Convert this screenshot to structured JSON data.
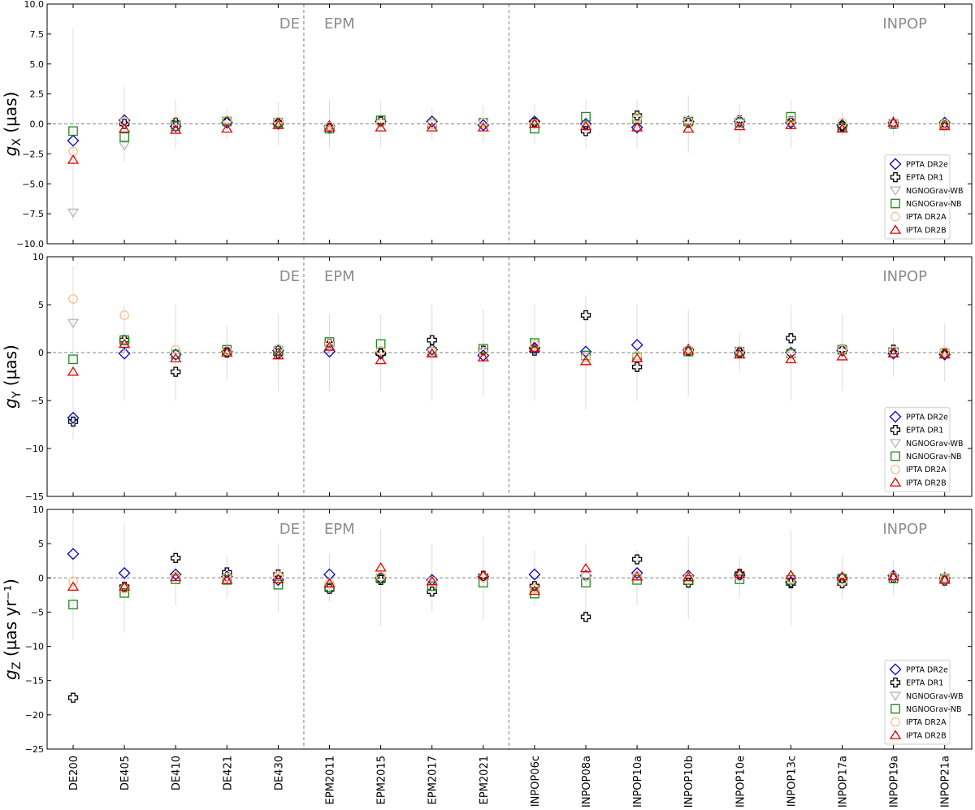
{
  "chart_data": {
    "type": "scatter",
    "categories": [
      "DE200",
      "DE405",
      "DE410",
      "DE421",
      "DE430",
      "EPM2011",
      "EPM2015",
      "EPM2017",
      "EPM2021",
      "INPOP06c",
      "INPOP08a",
      "INPOP10a",
      "INPOP10b",
      "INPOP10e",
      "INPOP13c",
      "INPOP17a",
      "INPOP19a",
      "INPOP21a"
    ],
    "regions": [
      {
        "label": "DE"
      },
      {
        "label": "EPM"
      },
      {
        "label": "INPOP"
      }
    ],
    "region_boundaries_after_index": [
      4,
      8
    ],
    "series": [
      {
        "name": "PPTA DR2e",
        "marker": "diamond",
        "color": "#0000cc"
      },
      {
        "name": "EPTA DR1",
        "marker": "plus",
        "color": "#000000"
      },
      {
        "name": "NGNOGrav-WB",
        "marker": "triangle-down",
        "color": "#b5b5b5"
      },
      {
        "name": "NGNOGrav-NB",
        "marker": "square",
        "color": "#1a8c1a"
      },
      {
        "name": "IPTA DR2A",
        "marker": "circle",
        "color": "#ffbe8c"
      },
      {
        "name": "IPTA DR2B",
        "marker": "triangle-up",
        "color": "#e60000"
      }
    ],
    "legend_position": "bottom-right",
    "grid": false,
    "panels": [
      {
        "ylabel_main": "g",
        "ylabel_sub": "X",
        "ylabel_unit": " (µas)",
        "ylim": [
          -10,
          10
        ],
        "yticks": [
          -10,
          -7.5,
          -5,
          -2.5,
          0,
          2.5,
          5,
          7.5,
          10
        ],
        "yticklabels": [
          "−10.0",
          "−7.5",
          "−5.0",
          "−2.5",
          "0.0",
          "2.5",
          "5.0",
          "7.5",
          "10.0"
        ],
        "values": {
          "PPTA DR2e": [
            -1.4,
            0.3,
            -0.2,
            0.1,
            0.0,
            -0.2,
            0.2,
            0.2,
            -0.1,
            0.2,
            0.0,
            -0.3,
            0.2,
            0.2,
            0.1,
            -0.1,
            0.1,
            0.1
          ],
          "EPTA DR1": [
            null,
            0.0,
            0.1,
            0.2,
            0.1,
            -0.3,
            0.2,
            null,
            null,
            0.1,
            -0.6,
            0.7,
            0.1,
            0.3,
            0.2,
            -0.2,
            0.0,
            -0.1
          ],
          "NGNOGrav-WB": [
            -7.4,
            -1.8,
            null,
            null,
            null,
            -0.5,
            null,
            null,
            null,
            null,
            null,
            null,
            null,
            null,
            null,
            null,
            null,
            null
          ],
          "NGNOGrav-NB": [
            -0.6,
            -1.1,
            -0.2,
            0.2,
            0.1,
            -0.4,
            0.3,
            0.0,
            0.1,
            -0.4,
            0.6,
            0.4,
            0.2,
            0.1,
            0.6,
            -0.3,
            0.0,
            -0.1
          ],
          "IPTA DR2A": [
            -2.3,
            0.2,
            0.2,
            0.3,
            0.2,
            -0.2,
            0.1,
            0.0,
            0.1,
            0.0,
            -0.2,
            0.5,
            0.2,
            0.3,
            0.2,
            0.1,
            0.1,
            0.0
          ],
          "IPTA DR2B": [
            -3.0,
            -0.4,
            -0.5,
            -0.4,
            -0.1,
            -0.3,
            -0.3,
            -0.3,
            -0.3,
            0.0,
            -0.2,
            -0.3,
            -0.4,
            -0.2,
            -0.1,
            -0.4,
            0.1,
            -0.2
          ]
        },
        "errorbar_halfwidths": [
          8.0,
          3.2,
          2.0,
          1.3,
          1.8,
          2.0,
          2.0,
          1.3,
          1.5,
          1.6,
          2.0,
          2.0,
          2.4,
          1.6,
          2.0,
          1.0,
          1.0,
          1.0
        ]
      },
      {
        "ylabel_main": "g",
        "ylabel_sub": "Y",
        "ylabel_unit": " (µas)",
        "ylim": [
          -15,
          10
        ],
        "yticks": [
          -15,
          -10,
          -5,
          0,
          5,
          10
        ],
        "yticklabels": [
          "−15",
          "−10",
          "−5",
          "0",
          "5",
          "10"
        ],
        "values": {
          "PPTA DR2e": [
            -6.8,
            -0.1,
            -0.2,
            0.1,
            0.2,
            0.1,
            -0.1,
            0.3,
            -0.3,
            0.5,
            0.1,
            0.8,
            0.3,
            0.0,
            0.0,
            0.2,
            -0.1,
            -0.2
          ],
          "EPTA DR1": [
            -7.2,
            1.3,
            -2.0,
            0.0,
            -0.1,
            0.9,
            -0.1,
            1.3,
            0.2,
            0.2,
            3.9,
            -1.5,
            0.2,
            0.0,
            1.5,
            0.3,
            0.3,
            -0.1
          ],
          "NGNOGrav-WB": [
            3.1,
            0.6,
            null,
            null,
            null,
            0.5,
            null,
            null,
            null,
            null,
            null,
            null,
            null,
            null,
            null,
            null,
            null,
            null
          ],
          "NGNOGrav-NB": [
            -0.7,
            1.3,
            -0.2,
            0.3,
            0.2,
            1.1,
            0.9,
            0.1,
            0.4,
            1.0,
            -0.3,
            -0.5,
            0.1,
            0.1,
            -0.1,
            0.3,
            0.0,
            -0.1
          ],
          "IPTA DR2A": [
            5.6,
            3.9,
            0.3,
            0.2,
            0.4,
            0.9,
            0.2,
            0.1,
            0.1,
            0.8,
            -0.5,
            -0.3,
            0.3,
            0.2,
            -0.2,
            0.3,
            0.2,
            0.1
          ],
          "IPTA DR2B": [
            -2.0,
            0.9,
            -0.6,
            0.0,
            -0.3,
            0.6,
            -0.8,
            -0.1,
            -0.5,
            0.5,
            -0.9,
            -0.6,
            0.2,
            -0.2,
            -0.7,
            -0.4,
            -0.1,
            -0.2
          ]
        },
        "errorbar_halfwidths": [
          9.0,
          5.0,
          5.0,
          2.8,
          4.0,
          4.0,
          4.0,
          5.0,
          4.5,
          5.0,
          6.0,
          5.0,
          4.5,
          2.0,
          5.0,
          4.0,
          2.5,
          3.0
        ]
      },
      {
        "ylabel_main": "g",
        "ylabel_sub": "Z",
        "ylabel_unit": " (µas yr⁻¹)",
        "ylim": [
          -25,
          10
        ],
        "yticks": [
          -25,
          -20,
          -15,
          -10,
          -5,
          0,
          5,
          10
        ],
        "yticklabels": [
          "−25",
          "−20",
          "−15",
          "−10",
          "−5",
          "0",
          "5",
          "10"
        ],
        "values": {
          "PPTA DR2e": [
            3.5,
            0.7,
            0.5,
            0.2,
            -0.3,
            0.5,
            0.0,
            -0.3,
            0.2,
            0.5,
            0.3,
            0.7,
            0.3,
            0.4,
            -0.6,
            0.0,
            0.3,
            0.0
          ],
          "EPTA DR1": [
            -17.5,
            -1.3,
            2.9,
            0.8,
            0.5,
            -1.6,
            -0.3,
            -2.0,
            0.3,
            -1.2,
            -5.7,
            2.7,
            -0.7,
            0.6,
            -0.8,
            -0.8,
            0.0,
            -0.4
          ],
          "NGNOGrav-WB": [
            null,
            null,
            null,
            null,
            null,
            null,
            null,
            null,
            null,
            null,
            null,
            null,
            null,
            null,
            null,
            null,
            null,
            null
          ],
          "NGNOGrav-NB": [
            -3.9,
            -2.2,
            -0.2,
            -0.3,
            -1.0,
            -1.4,
            -0.1,
            -1.2,
            -0.7,
            -2.3,
            -0.7,
            -0.3,
            -0.3,
            -0.2,
            -0.3,
            -0.1,
            -0.1,
            -0.1
          ],
          "IPTA DR2A": [
            -0.5,
            -1.6,
            0.2,
            0.1,
            0.3,
            -0.8,
            0.2,
            -0.5,
            0.1,
            -1.6,
            0.2,
            0.3,
            0.1,
            0.2,
            -0.1,
            -0.5,
            0.2,
            0.0
          ],
          "IPTA DR2B": [
            -1.3,
            -1.3,
            0.1,
            -0.3,
            -0.2,
            -0.8,
            1.5,
            -0.5,
            0.4,
            -1.9,
            1.4,
            0.2,
            0.1,
            0.6,
            0.4,
            0.2,
            0.2,
            -0.3
          ]
        },
        "errorbar_halfwidths": [
          9.0,
          8.0,
          4.0,
          3.0,
          5.0,
          3.5,
          7.0,
          5.0,
          6.0,
          4.0,
          5.0,
          4.0,
          6.0,
          3.0,
          7.0,
          3.0,
          2.5,
          1.5
        ]
      }
    ]
  }
}
